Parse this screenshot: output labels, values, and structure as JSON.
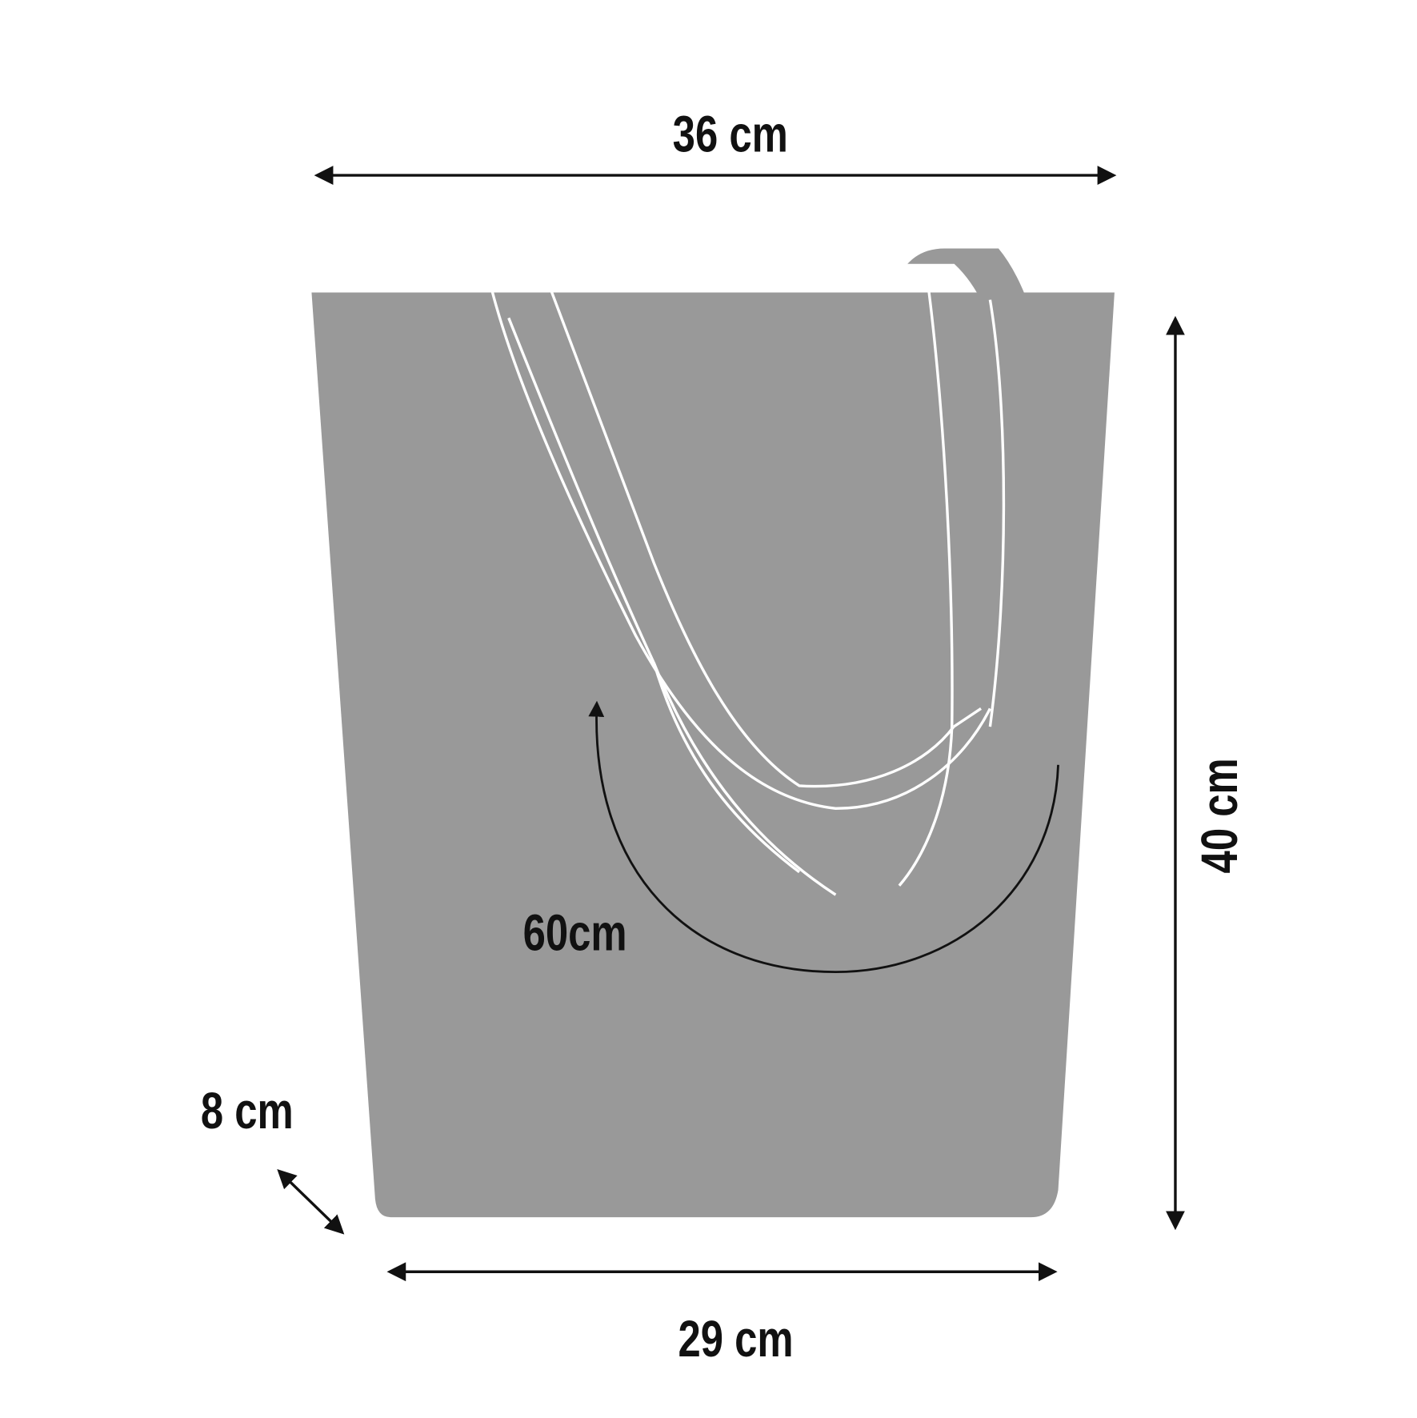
{
  "diagram": {
    "subject": "tote bag",
    "colors": {
      "bag": "#999999",
      "strap_outline": "#ffffff",
      "annotation": "#111111",
      "background": "#ffffff"
    },
    "dimensions": {
      "top_width": "36 cm",
      "bottom_width": "29 cm",
      "height": "40 cm",
      "depth": "8 cm",
      "handle_length": "60cm"
    }
  }
}
